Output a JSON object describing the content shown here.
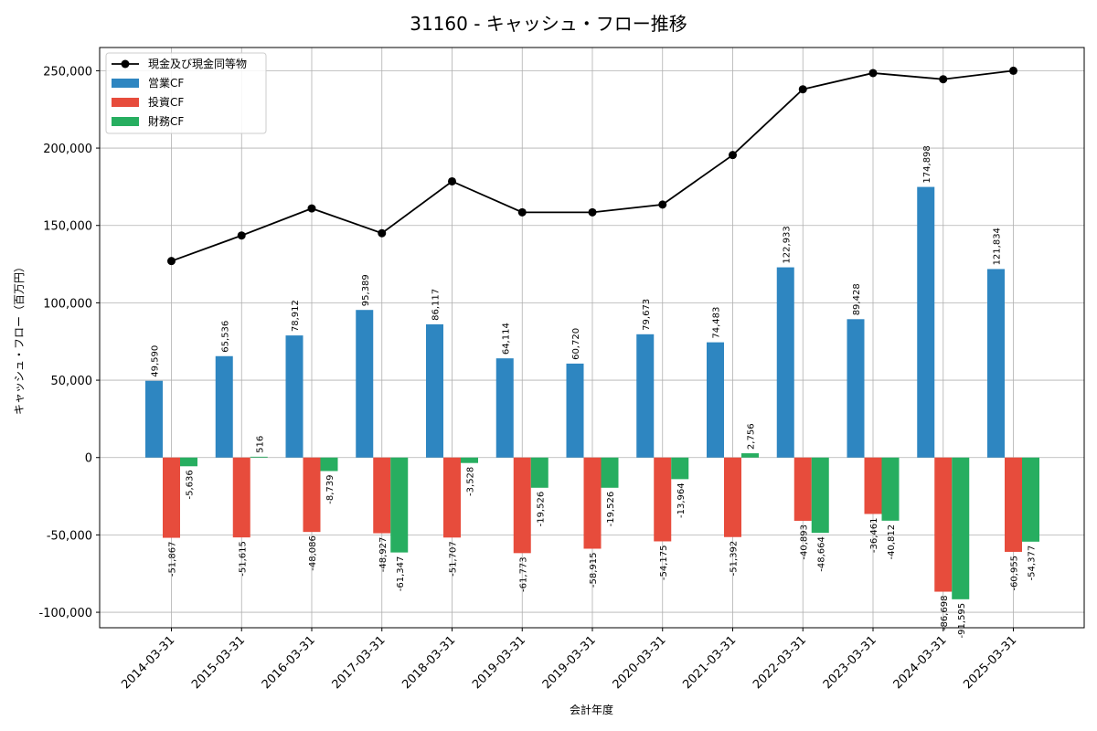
{
  "chart_data": {
    "type": "bar",
    "title": "31160 - キャッシュ・フロー推移",
    "xlabel": "会計年度",
    "ylabel": "キャッシュ・フロー（百万円）",
    "ylim": [
      -110000,
      265000
    ],
    "yticks": [
      -100000,
      -50000,
      0,
      50000,
      100000,
      150000,
      200000,
      250000
    ],
    "ytick_labels": [
      "-100,000",
      "-50,000",
      "0",
      "50,000",
      "100,000",
      "150,000",
      "200,000",
      "250,000"
    ],
    "grid": true,
    "legend_position": "top-left",
    "categories": [
      "2014-03-31",
      "2015-03-31",
      "2016-03-31",
      "2017-03-31",
      "2018-03-31",
      "2019-03-31",
      "2019-03-31",
      "2020-03-31",
      "2021-03-31",
      "2022-03-31",
      "2023-03-31",
      "2024-03-31",
      "2025-03-31"
    ],
    "series": [
      {
        "name": "営業CF",
        "kind": "bar",
        "color": "#2e86c1",
        "values": [
          49590,
          65536,
          78912,
          95389,
          86117,
          64114,
          60720,
          79673,
          74483,
          122933,
          89428,
          174898,
          121834
        ],
        "labels": [
          "49,590",
          "65,536",
          "78,912",
          "95,389",
          "86,117",
          "64,114",
          "60,720",
          "79,673",
          "74,483",
          "122,933",
          "89,428",
          "174,898",
          "121,834"
        ]
      },
      {
        "name": "投資CF",
        "kind": "bar",
        "color": "#e74c3c",
        "values": [
          -51867,
          -51615,
          -48086,
          -48927,
          -51707,
          -61773,
          -58915,
          -54175,
          -51392,
          -40893,
          -36461,
          -86698,
          -60955
        ],
        "labels": [
          "-51,867",
          "-51,615",
          "-48,086",
          "-48,927",
          "-51,707",
          "-61,773",
          "-58,915",
          "-54,175",
          "-51,392",
          "-40,893",
          "-36,461",
          "-86,698",
          "-60,955"
        ]
      },
      {
        "name": "財務CF",
        "kind": "bar",
        "color": "#27ae60",
        "values": [
          -5636,
          516,
          -8739,
          -61347,
          -3528,
          -19526,
          -19526,
          -13964,
          2756,
          -48664,
          -40812,
          -91595,
          -54377
        ],
        "labels": [
          "-5,636",
          "516",
          "-8,739",
          "-61,347",
          "-3,528",
          "-19,526",
          "-19,526",
          "-13,964",
          "2,756",
          "-48,664",
          "-40,812",
          "-91,595",
          "-54,377"
        ]
      },
      {
        "name": "現金及び現金同等物",
        "kind": "line",
        "color": "#000000",
        "values": [
          127000,
          143500,
          161000,
          145000,
          178500,
          158500,
          158500,
          163500,
          195500,
          238000,
          248500,
          244500,
          250000
        ]
      }
    ]
  }
}
